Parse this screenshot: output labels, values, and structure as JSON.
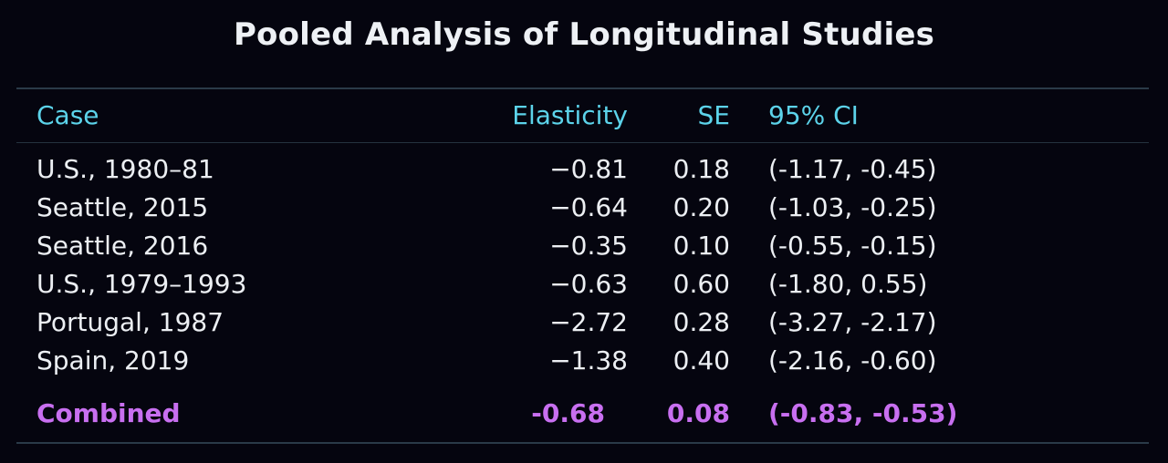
{
  "title": "Pooled Analysis of Longitudinal Studies",
  "columns": {
    "case": "Case",
    "elasticity": "Elasticity",
    "se": "SE",
    "ci": "95% CI"
  },
  "rows": [
    {
      "case": "U.S., 1980–81",
      "elasticity": "−0.81",
      "se": "0.18",
      "ci": "(-1.17, -0.45)"
    },
    {
      "case": "Seattle, 2015",
      "elasticity": "−0.64",
      "se": "0.20",
      "ci": "(-1.03, -0.25)"
    },
    {
      "case": "Seattle, 2016",
      "elasticity": "−0.35",
      "se": "0.10",
      "ci": "(-0.55, -0.15)"
    },
    {
      "case": "U.S., 1979–1993",
      "elasticity": "−0.63",
      "se": "0.60",
      "ci": "(-1.80, 0.55)"
    },
    {
      "case": "Portugal, 1987",
      "elasticity": "−2.72",
      "se": "0.28",
      "ci": "(-3.27, -2.17)"
    },
    {
      "case": "Spain, 2019",
      "elasticity": "−1.38",
      "se": "0.40",
      "ci": "(-2.16, -0.60)"
    }
  ],
  "combined": {
    "case": "Combined",
    "elasticity": "-0.68",
    "se": "0.08",
    "ci": "(-0.83, -0.53)"
  },
  "colors": {
    "background": "#05050f",
    "header": "#5cd3ea",
    "combined": "#c86ff0",
    "text": "#eceff3"
  }
}
